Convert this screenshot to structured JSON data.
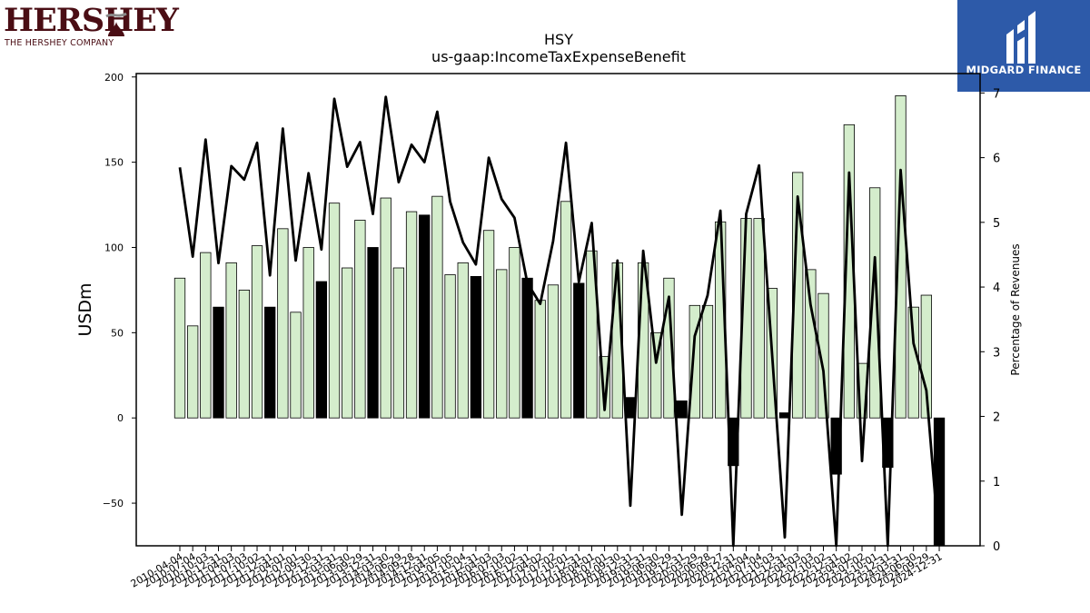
{
  "logos": {
    "left": {
      "wordmark": "HERSHEY",
      "subtitle": "THE HERSHEY COMPANY"
    },
    "right": {
      "name": "MIDGARD FINANCE"
    }
  },
  "colors": {
    "bar_positive": "#d4edcc",
    "bar_highlight": "#000000",
    "line": "#000000"
  },
  "chart_data": {
    "type": "bar",
    "title": "HSY",
    "subtitle": "us-gaap:IncomeTaxExpenseBenefit",
    "ylabel": "USDm",
    "y2label": "Percentage of Revenues",
    "ylim": [
      -75,
      202
    ],
    "y2lim": [
      0,
      7.3
    ],
    "yticks": [
      -50,
      0,
      50,
      100,
      150,
      200
    ],
    "y2ticks": [
      0,
      1,
      2,
      3,
      4,
      5,
      6,
      7
    ],
    "categories": [
      "2010-04-04",
      "2010-07-04",
      "2010-10-03",
      "2010-12-31",
      "2011-04-03",
      "2011-07-03",
      "2011-10-02",
      "2011-12-31",
      "2012-04-01",
      "2012-07-01",
      "2012-09-30",
      "2012-12-31",
      "2013-03-31",
      "2013-06-30",
      "2013-09-29",
      "2013-12-31",
      "2014-03-30",
      "2014-06-29",
      "2014-09-28",
      "2014-12-31",
      "2015-04-05",
      "2015-07-05",
      "2015-10-04",
      "2015-12-31",
      "2016-04-03",
      "2016-07-03",
      "2016-10-02",
      "2016-12-31",
      "2017-04-02",
      "2017-07-02",
      "2017-10-01",
      "2017-12-31",
      "2018-04-01",
      "2018-07-01",
      "2018-09-30",
      "2018-12-31",
      "2019-03-31",
      "2019-06-30",
      "2019-09-29",
      "2019-12-31",
      "2020-03-29",
      "2020-06-28",
      "2020-09-27",
      "2020-12-31",
      "2021-04-04",
      "2021-07-04",
      "2021-10-03",
      "2021-12-31",
      "2022-04-03",
      "2022-07-03",
      "2022-10-02",
      "2022-12-31",
      "2023-04-02",
      "2023-07-02",
      "2023-10-01",
      "2023-12-31",
      "2024-03-31",
      "2024-06-30",
      "2024-09-29",
      "2024-12-31"
    ],
    "xticklabels": [
      "2010-04-04",
      "2010-07-04",
      "2010-10-03",
      "2010-12-31",
      "2011-04-03",
      "2011-07-03",
      "2011-10-02",
      "2011-12-31",
      "2012-04-01",
      "2012-07-01",
      "2012-09-30",
      "2012-12-31",
      "2013-03-31",
      "2013-06-30",
      "2013-09-29",
      "2013-12-31",
      "2014-03-30",
      "2014-06-29",
      "2014-09-28",
      "2014-12-31",
      "2015-04-05",
      "2015-07-05",
      "2015-10-04",
      "2015-12-31",
      "2016-04-03",
      "2016-07-03",
      "2016-10-02",
      "2016-12-31",
      "2017-04-02",
      "2017-07-02",
      "2017-10-01",
      "2017-12-31",
      "2018-04-01",
      "2018-07-01",
      "2018-09-30",
      "2018-12-31",
      "2019-03-31",
      "2019-06-30",
      "2019-09-29",
      "2019-12-31",
      "2020-03-29",
      "2020-06-28",
      "2020-09-27",
      "2020-12-31",
      "2021-04-04",
      "2021-07-04",
      "2021-10-03",
      "2021-12-31",
      "2022-04-03",
      "2022-07-03",
      "2022-10-02",
      "2022-12-31",
      "2023-04-02",
      "2023-07-02",
      "2023-10-01",
      "2023-12-31",
      "2024-03-31",
      "2024-06-30",
      "2024-09-29",
      "2024-12-31"
    ],
    "series": [
      {
        "role": "bars",
        "values": [
          82,
          54,
          97,
          65,
          91,
          75,
          101,
          65,
          111,
          62,
          100,
          80,
          126,
          88,
          116,
          100,
          129,
          88,
          121,
          119,
          130,
          84,
          91,
          83,
          110,
          87,
          100,
          82,
          69,
          78,
          127,
          79,
          98,
          36,
          91,
          12,
          91,
          50,
          82,
          10,
          66,
          66,
          115,
          -28,
          117,
          117,
          76,
          3,
          144,
          87,
          73,
          -33,
          172,
          32,
          135,
          -29,
          189,
          65,
          72,
          -76
        ],
        "highlight": [
          false,
          false,
          false,
          true,
          false,
          false,
          false,
          true,
          false,
          false,
          false,
          true,
          false,
          false,
          false,
          true,
          false,
          false,
          false,
          true,
          false,
          false,
          false,
          true,
          false,
          false,
          false,
          true,
          false,
          false,
          false,
          true,
          false,
          false,
          false,
          true,
          false,
          false,
          false,
          true,
          false,
          false,
          false,
          true,
          false,
          false,
          false,
          true,
          false,
          false,
          false,
          true,
          false,
          false,
          false,
          true,
          false,
          false,
          false,
          true
        ]
      },
      {
        "role": "line",
        "axis": "right",
        "values": [
          5.85,
          4.47,
          6.28,
          4.37,
          5.87,
          5.66,
          6.23,
          4.18,
          6.45,
          4.41,
          5.76,
          4.58,
          6.91,
          5.86,
          6.24,
          5.13,
          6.94,
          5.62,
          6.2,
          5.93,
          6.71,
          5.32,
          4.69,
          4.35,
          6.0,
          5.36,
          5.07,
          4.06,
          3.74,
          4.71,
          6.23,
          4.08,
          4.99,
          2.1,
          4.41,
          0.62,
          4.56,
          2.83,
          3.85,
          0.48,
          3.24,
          3.87,
          5.18,
          0.0,
          5.13,
          5.88,
          3.0,
          0.13,
          5.4,
          3.73,
          2.7,
          0.0,
          5.77,
          1.31,
          4.46,
          0.0,
          5.81,
          3.13,
          2.4,
          0.0
        ]
      }
    ]
  }
}
